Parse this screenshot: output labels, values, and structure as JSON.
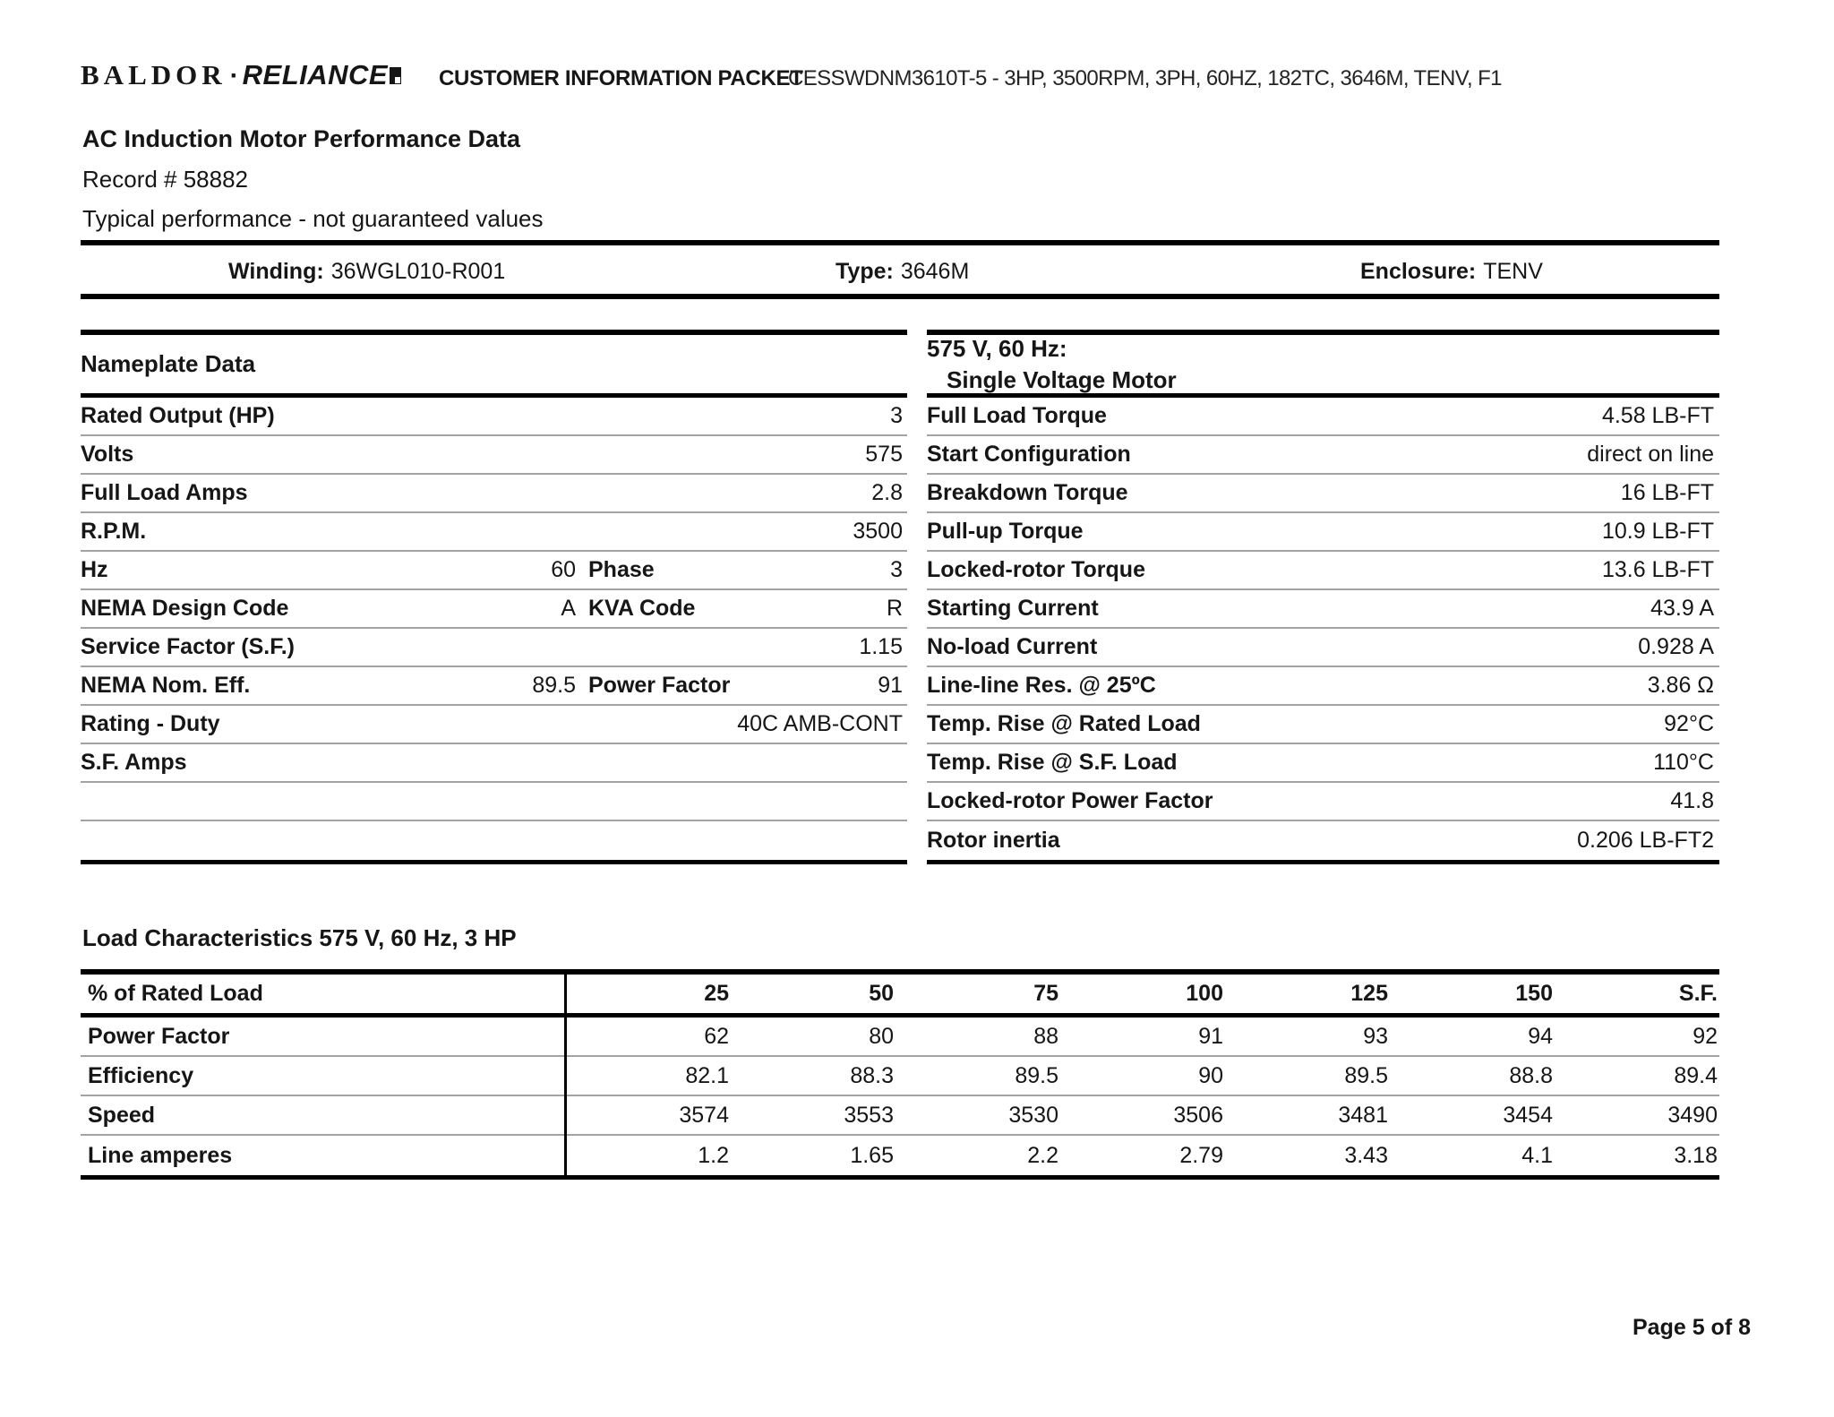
{
  "header": {
    "logo": {
      "baldor": "BALDOR",
      "separator": "·",
      "reliance": "RELIANCE"
    },
    "packet_title": "CUSTOMER INFORMATION PACKET",
    "spec_line": "CESSWDNM3610T-5 - 3HP, 3500RPM, 3PH, 60HZ, 182TC, 3646M, TENV, F1"
  },
  "title_block": {
    "title": "AC Induction Motor Performance Data",
    "record": "Record # 58882",
    "note": "Typical performance - not guaranteed values"
  },
  "winding_bar": {
    "winding_label": "Winding:",
    "winding_value": "36WGL010-R001",
    "type_label": "Type:",
    "type_value": "3646M",
    "enclosure_label": "Enclosure:",
    "enclosure_value": "TENV"
  },
  "nameplate": {
    "header": "Nameplate Data",
    "rows": [
      {
        "label": "Rated Output (HP)",
        "mid_value": "",
        "mid_label": "",
        "value": "3"
      },
      {
        "label": "Volts",
        "mid_value": "",
        "mid_label": "",
        "value": "575"
      },
      {
        "label": "Full Load Amps",
        "mid_value": "",
        "mid_label": "",
        "value": "2.8"
      },
      {
        "label": "R.P.M.",
        "mid_value": "",
        "mid_label": "",
        "value": "3500"
      },
      {
        "label": "Hz",
        "mid_value": "60",
        "mid_label": "Phase",
        "value": "3"
      },
      {
        "label": "NEMA Design Code",
        "mid_value": "A",
        "mid_label": "KVA Code",
        "value": "R"
      },
      {
        "label": "Service Factor (S.F.)",
        "mid_value": "",
        "mid_label": "",
        "value": "1.15"
      },
      {
        "label": "NEMA Nom. Eff.",
        "mid_value": "89.5",
        "mid_label": "Power Factor",
        "value": "91"
      },
      {
        "label": "Rating - Duty",
        "mid_value": "",
        "mid_label": "",
        "value": "40C AMB-CONT"
      },
      {
        "label": "S.F. Amps",
        "mid_value": "",
        "mid_label": "",
        "value": ""
      },
      {
        "label": "",
        "mid_value": "",
        "mid_label": "",
        "value": ""
      },
      {
        "label": "",
        "mid_value": "",
        "mid_label": "",
        "value": ""
      }
    ]
  },
  "voltage_table": {
    "header_line1": "575 V, 60 Hz:",
    "header_line2": "Single Voltage Motor",
    "rows": [
      {
        "label": "Full Load Torque",
        "value": "4.58 LB-FT"
      },
      {
        "label": "Start Configuration",
        "value": "direct on line"
      },
      {
        "label": "Breakdown Torque",
        "value": "16 LB-FT"
      },
      {
        "label": "Pull-up Torque",
        "value": "10.9 LB-FT"
      },
      {
        "label": "Locked-rotor Torque",
        "value": "13.6 LB-FT"
      },
      {
        "label": "Starting Current",
        "value": "43.9 A"
      },
      {
        "label": "No-load Current",
        "value": "0.928 A"
      },
      {
        "label": "Line-line Res. @ 25ºC",
        "value": "3.86 Ω"
      },
      {
        "label": "Temp. Rise @ Rated Load",
        "value": "92°C"
      },
      {
        "label": "Temp. Rise @ S.F. Load",
        "value": "110°C"
      },
      {
        "label": "Locked-rotor Power Factor",
        "value": "41.8"
      },
      {
        "label": "Rotor inertia",
        "value": "0.206 LB-FT2"
      }
    ]
  },
  "load_characteristics": {
    "title": "Load Characteristics 575 V, 60 Hz, 3 HP",
    "col_header": "% of Rated Load",
    "columns": [
      "25",
      "50",
      "75",
      "100",
      "125",
      "150",
      "S.F."
    ],
    "rows": [
      {
        "label": "Power Factor",
        "values": [
          "62",
          "80",
          "88",
          "91",
          "93",
          "94",
          "92"
        ]
      },
      {
        "label": "Efficiency",
        "values": [
          "82.1",
          "88.3",
          "89.5",
          "90",
          "89.5",
          "88.8",
          "89.4"
        ]
      },
      {
        "label": "Speed",
        "values": [
          "3574",
          "3553",
          "3530",
          "3506",
          "3481",
          "3454",
          "3490"
        ]
      },
      {
        "label": "Line amperes",
        "values": [
          "1.2",
          "1.65",
          "2.2",
          "2.79",
          "3.43",
          "4.1",
          "3.18"
        ]
      }
    ]
  },
  "footer": {
    "page": "Page 5 of 8"
  },
  "colors": {
    "text": "#161616",
    "rule_thick": "#000000",
    "rule_thin": "#a3a3a3",
    "background": "#ffffff"
  }
}
